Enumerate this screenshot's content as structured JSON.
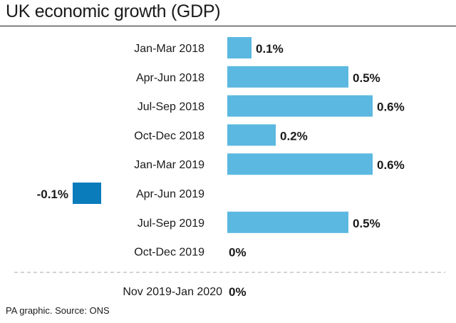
{
  "title": "UK economic growth (GDP)",
  "footer": "PA graphic. Source: ONS",
  "colors": {
    "positive": "#5bb8e0",
    "negative": "#0a7cbc"
  },
  "chart_data": {
    "type": "bar",
    "orientation": "horizontal",
    "title": "UK economic growth (GDP)",
    "categories": [
      "Jan-Mar 2018",
      "Apr-Jun 2018",
      "Jul-Sep 2018",
      "Oct-Dec 2018",
      "Jan-Mar 2019",
      "Apr-Jun 2019",
      "Jul-Sep 2019",
      "Oct-Dec 2019"
    ],
    "values": [
      0.1,
      0.5,
      0.6,
      0.2,
      0.6,
      -0.1,
      0.5,
      0.0
    ],
    "value_labels": [
      "0.1%",
      "0.5%",
      "0.6%",
      "0.2%",
      "0.6%",
      "-0.1%",
      "0.5%",
      "0%"
    ],
    "separated_category": "Nov 2019-Jan 2020",
    "separated_value": 0.0,
    "separated_value_label": "0%",
    "xlabel": "",
    "ylabel": "",
    "grid": false,
    "legend": false
  }
}
